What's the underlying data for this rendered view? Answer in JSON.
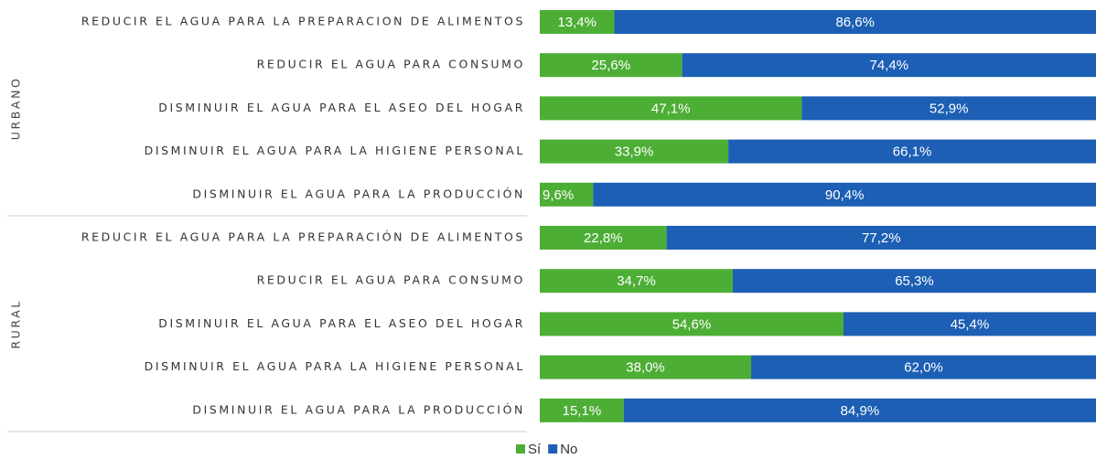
{
  "chart_data": [
    {
      "type": "bar",
      "group": "URBANO",
      "categories": [
        "REDUCIR EL AGUA PARA LA PREPARACION DE ALIMENTOS",
        "REDUCIR EL AGUA PARA CONSUMO",
        "DISMINUIR EL AGUA PARA EL ASEO DEL HOGAR",
        "DISMINUIR EL AGUA PARA LA HIGIENE PERSONAL",
        "DISMINUIR EL AGUA PARA LA PRODUCCIÓN"
      ],
      "series": [
        {
          "name": "Sí",
          "color": "#4dae35",
          "values": [
            13.4,
            25.6,
            47.1,
            33.9,
            9.6
          ],
          "value_labels": [
            "13,4%",
            "25,6%",
            "47,1%",
            "33,9%",
            "9,6%"
          ]
        },
        {
          "name": "No",
          "color": "#1c5fb4",
          "values": [
            86.6,
            74.4,
            52.9,
            66.1,
            90.4
          ],
          "value_labels": [
            "86,6%",
            "74,4%",
            "52,9%",
            "66,1%",
            "90,4%"
          ]
        }
      ]
    },
    {
      "type": "bar",
      "group": "RURAL",
      "categories": [
        "REDUCIR EL AGUA PARA LA PREPARACIÓN DE ALIMENTOS",
        "REDUCIR EL AGUA PARA CONSUMO",
        "DISMINUIR EL AGUA PARA EL ASEO DEL HOGAR",
        "DISMINUIR EL AGUA PARA LA HIGIENE PERSONAL",
        "DISMINUIR EL AGUA PARA LA PRODUCCIÓN"
      ],
      "series": [
        {
          "name": "Sí",
          "color": "#4dae35",
          "values": [
            22.8,
            34.7,
            54.6,
            38.0,
            15.1
          ],
          "value_labels": [
            "22,8%",
            "34,7%",
            "54,6%",
            "38,0%",
            "15,1%"
          ]
        },
        {
          "name": "No",
          "color": "#1c5fb4",
          "values": [
            77.2,
            65.3,
            45.4,
            62.0,
            84.9
          ],
          "value_labels": [
            "77,2%",
            "65,3%",
            "45,4%",
            "62,0%",
            "84,9%"
          ]
        }
      ]
    }
  ]
}
